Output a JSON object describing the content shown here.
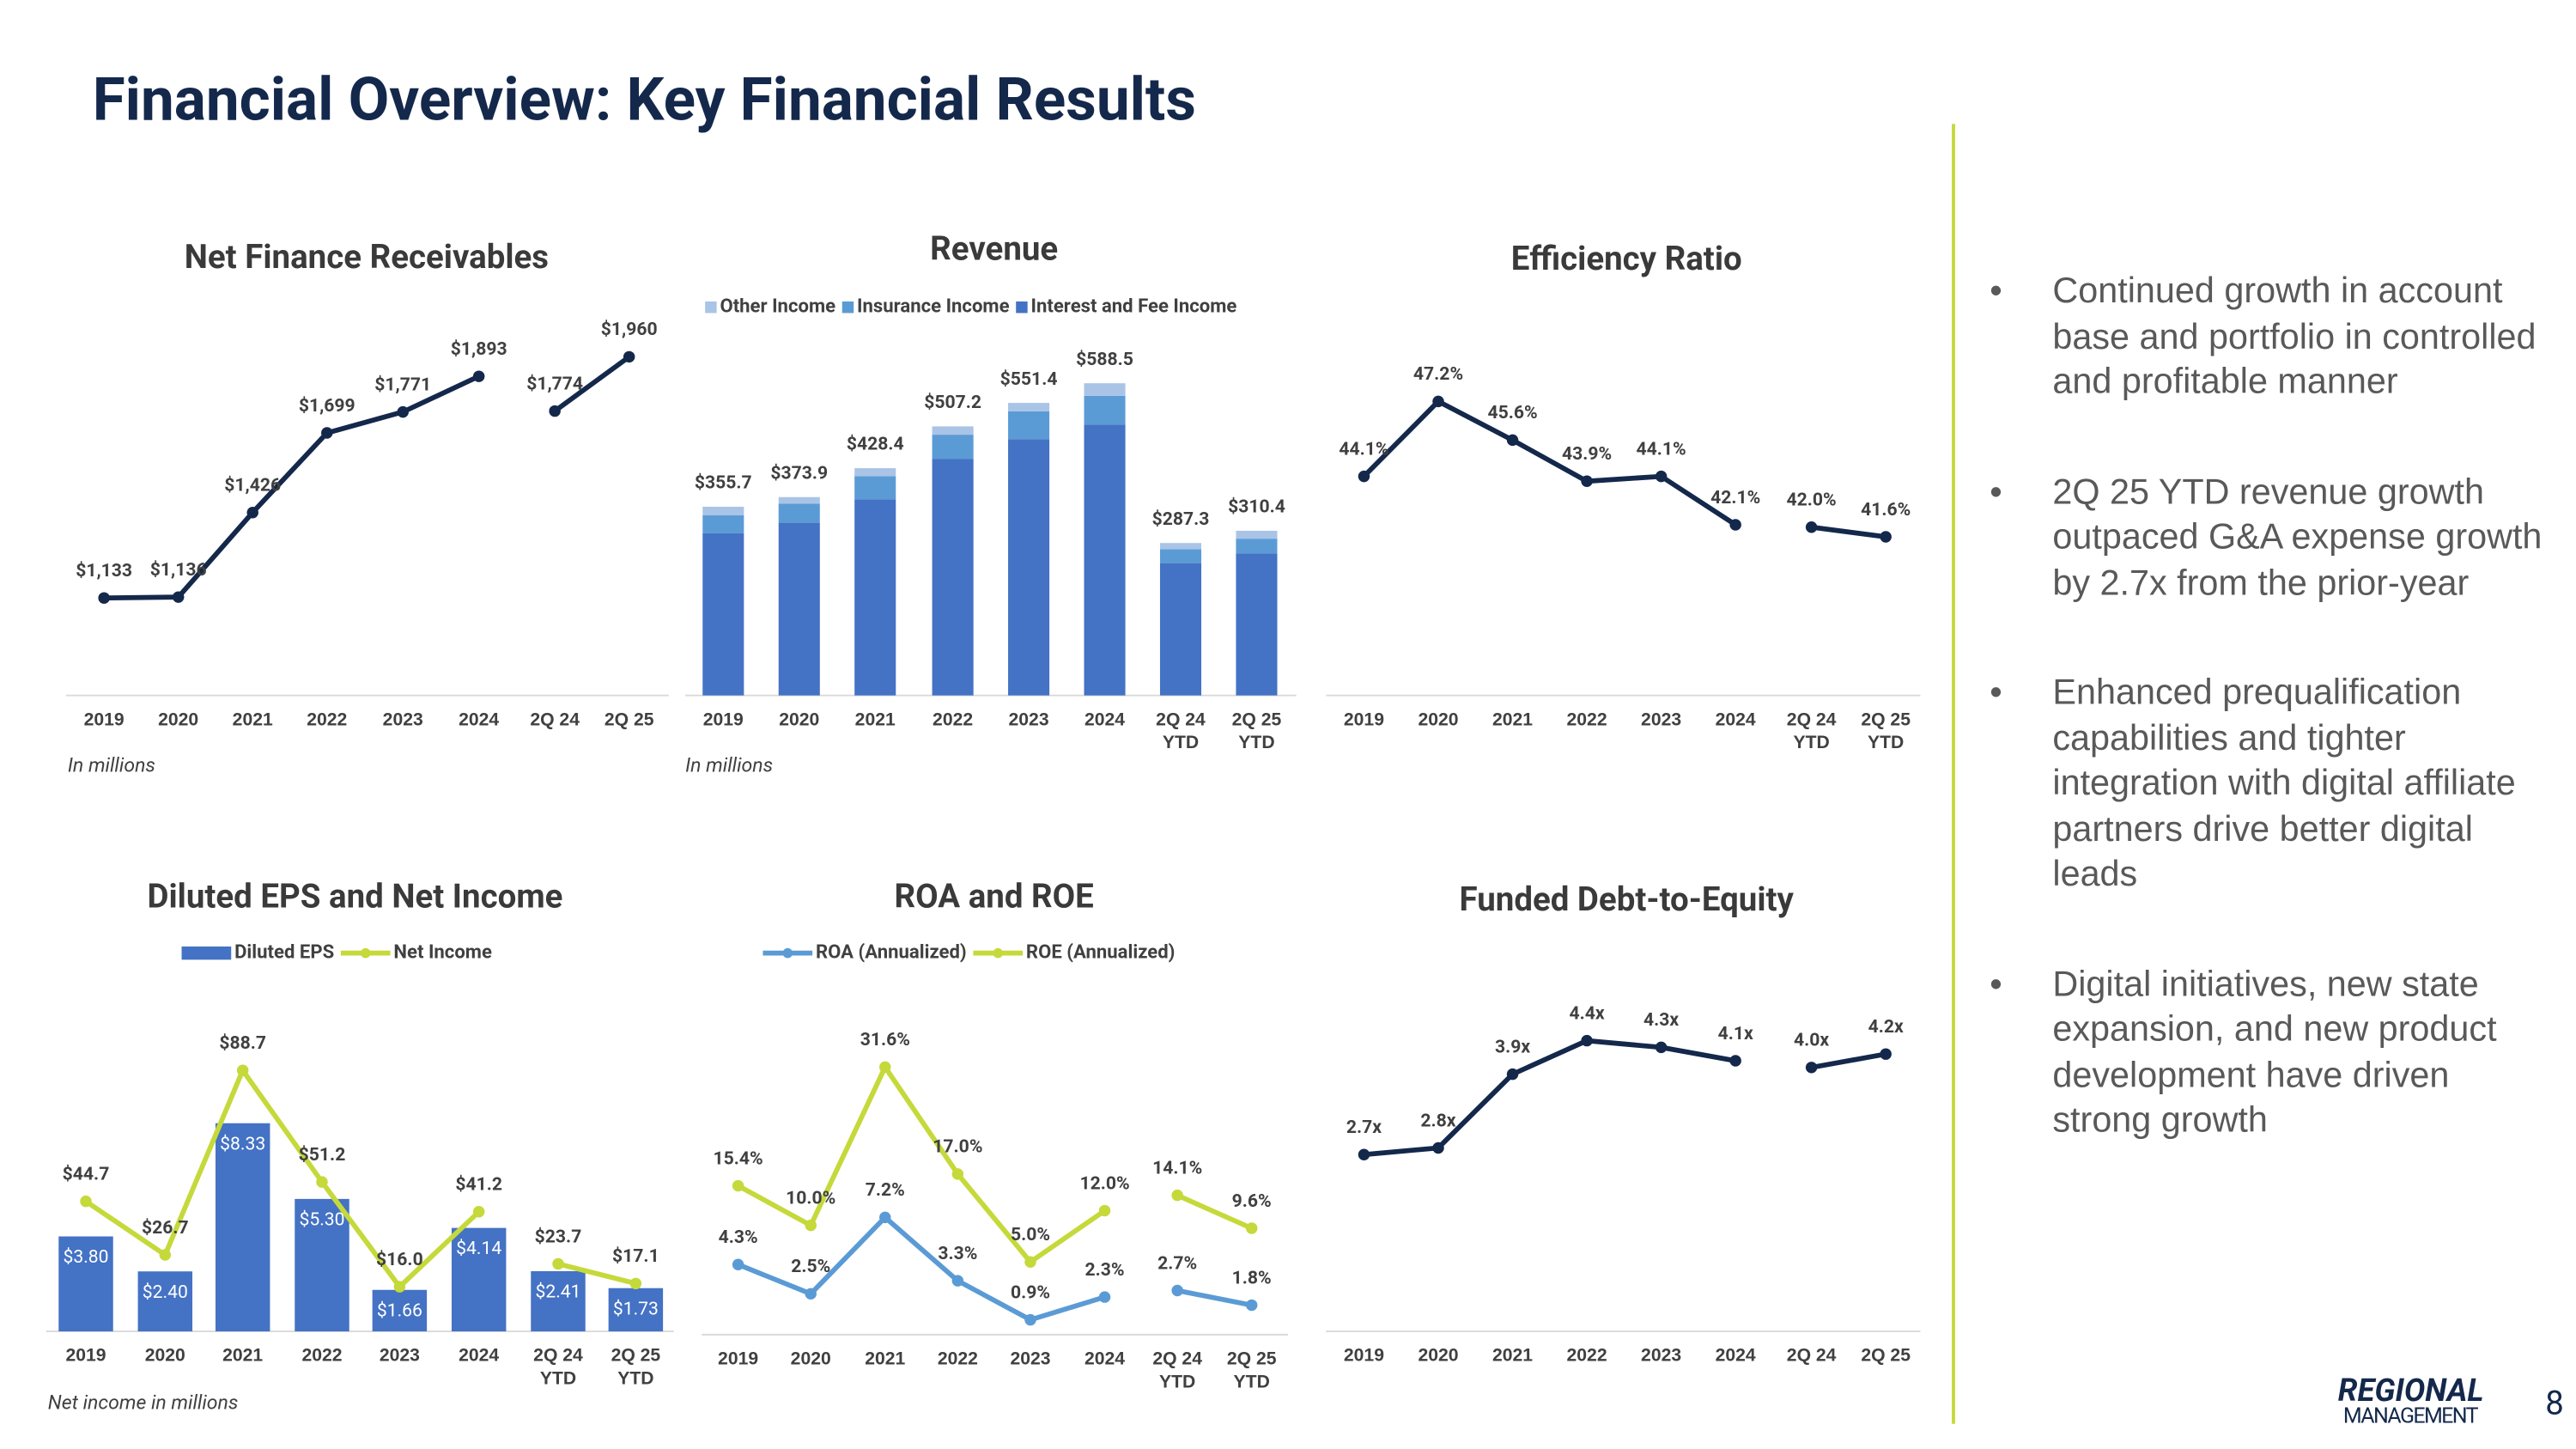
{
  "title": "Financial Overview: Key Financial Results",
  "bullets": [
    "Continued growth in account base and portfolio in controlled and profitable manner",
    "2Q 25 YTD revenue growth outpaced G&A expense growth by 2.7x from the prior-year",
    "Enhanced prequalification capabilities and tighter integration with digital affiliate partners drive better digital leads",
    "Digital initiatives, new state expansion, and new product development have driven strong growth"
  ],
  "logo": [
    "REGIONAL",
    "MANAGEMENT"
  ],
  "page_number": "8",
  "chart_data": [
    {
      "type": "line",
      "title": "Net Finance Receivables",
      "note": "In millions",
      "categories": [
        "2019",
        "2020",
        "2021",
        "2022",
        "2023",
        "2024",
        "2Q 24",
        "2Q 25"
      ],
      "series": [
        {
          "color": "#14284b",
          "values": [
            1133,
            1136,
            1426,
            1699,
            1771,
            1893,
            null,
            null
          ],
          "value_labels": [
            "$1,133",
            "$1,136",
            "$1,426",
            "$1,699",
            "$1,771",
            "$1,893",
            null,
            null
          ]
        },
        {
          "color": "#14284b",
          "values": [
            null,
            null,
            null,
            null,
            null,
            null,
            1774,
            1960
          ],
          "value_labels": [
            null,
            null,
            null,
            null,
            null,
            null,
            "$1,774",
            "$1,960"
          ]
        }
      ]
    },
    {
      "type": "bar",
      "stacked": true,
      "title": "Revenue",
      "note": "In millions",
      "categories": [
        "2019",
        "2020",
        "2021",
        "2022",
        "2023",
        "2024",
        "2Q 24 YTD",
        "2Q 25 YTD"
      ],
      "series": [
        {
          "name": "Interest and Fee Income",
          "color": "#4472c4",
          "values": [
            305.6,
            324.9,
            369.8,
            445.5,
            483.0,
            510.5,
            249.4,
            267.6
          ]
        },
        {
          "name": "Insurance Income",
          "color": "#5b9bd5",
          "values": [
            33.9,
            36.5,
            43.5,
            46.0,
            52.7,
            54.2,
            26.3,
            27.9
          ]
        },
        {
          "name": "Other Income",
          "color": "#a9c4e6",
          "values": [
            16.2,
            12.5,
            15.1,
            15.7,
            15.7,
            23.8,
            11.6,
            14.9
          ]
        }
      ],
      "totals": [
        355.7,
        373.9,
        428.4,
        507.2,
        551.4,
        588.5,
        287.3,
        310.4
      ],
      "total_labels": [
        "$355.7",
        "$373.9",
        "$428.4",
        "$507.2",
        "$551.4",
        "$588.5",
        "$287.3",
        "$310.4"
      ]
    },
    {
      "type": "line",
      "title": "Efficiency Ratio",
      "categories": [
        "2019",
        "2020",
        "2021",
        "2022",
        "2023",
        "2024",
        "2Q 24 YTD",
        "2Q 25 YTD"
      ],
      "series": [
        {
          "color": "#14284b",
          "values": [
            44.1,
            47.2,
            45.6,
            43.9,
            44.1,
            42.1,
            null,
            null
          ],
          "value_labels": [
            "44.1%",
            "47.2%",
            "45.6%",
            "43.9%",
            "44.1%",
            "42.1%",
            null,
            null
          ]
        },
        {
          "color": "#14284b",
          "values": [
            null,
            null,
            null,
            null,
            null,
            null,
            42.0,
            41.6
          ],
          "value_labels": [
            null,
            null,
            null,
            null,
            null,
            null,
            "42.0%",
            "41.6%"
          ]
        }
      ]
    },
    {
      "type": "bar",
      "title": "Diluted EPS and Net Income",
      "note": "Net income in millions",
      "categories": [
        "2019",
        "2020",
        "2021",
        "2022",
        "2023",
        "2024",
        "2Q 24 YTD",
        "2Q 25 YTD"
      ],
      "series": [
        {
          "name": "Diluted EPS",
          "color": "#4472c4",
          "values": [
            3.8,
            2.4,
            8.33,
            5.3,
            1.66,
            4.14,
            2.41,
            1.73
          ],
          "value_labels": [
            "$3.80",
            "$2.40",
            "$8.33",
            "$5.30",
            "$1.66",
            "$4.14",
            "$2.41",
            "$1.73"
          ]
        },
        {
          "name": "Net Income",
          "type": "line",
          "axis": "y2",
          "color": "#c5d93a",
          "values": [
            44.7,
            26.7,
            88.7,
            51.2,
            16.0,
            41.2,
            null,
            null
          ],
          "value_labels": [
            "$44.7",
            "$26.7",
            "$88.7",
            "$51.2",
            "$16.0",
            "$41.2",
            null,
            null
          ]
        },
        {
          "type": "line",
          "axis": "y2",
          "color": "#c5d93a",
          "values": [
            null,
            null,
            null,
            null,
            null,
            null,
            23.7,
            17.1
          ],
          "value_labels": [
            null,
            null,
            null,
            null,
            null,
            null,
            "$23.7",
            "$17.1"
          ]
        }
      ]
    },
    {
      "type": "line",
      "title": "ROA and ROE",
      "categories": [
        "2019",
        "2020",
        "2021",
        "2022",
        "2023",
        "2024",
        "2Q 24 YTD",
        "2Q 25 YTD"
      ],
      "series": [
        {
          "name": "ROA (Annualized)",
          "color": "#5b9bd5",
          "values": [
            4.3,
            2.5,
            7.2,
            3.3,
            0.9,
            2.3,
            null,
            null
          ],
          "value_labels": [
            "4.3%",
            "2.5%",
            "7.2%",
            "3.3%",
            "0.9%",
            "2.3%",
            null,
            null
          ]
        },
        {
          "color": "#5b9bd5",
          "values": [
            null,
            null,
            null,
            null,
            null,
            null,
            2.7,
            1.8
          ],
          "value_labels": [
            null,
            null,
            null,
            null,
            null,
            null,
            "2.7%",
            "1.8%"
          ]
        },
        {
          "name": "ROE (Annualized)",
          "axis": "y2",
          "color": "#c5d93a",
          "values": [
            15.4,
            10.0,
            31.6,
            17.0,
            5.0,
            12.0,
            null,
            null
          ],
          "value_labels": [
            "15.4%",
            "10.0%",
            "31.6%",
            "17.0%",
            "5.0%",
            "12.0%",
            null,
            null
          ]
        },
        {
          "axis": "y2",
          "color": "#c5d93a",
          "values": [
            null,
            null,
            null,
            null,
            null,
            null,
            14.1,
            9.6
          ],
          "value_labels": [
            null,
            null,
            null,
            null,
            null,
            null,
            "14.1%",
            "9.6%"
          ]
        }
      ]
    },
    {
      "type": "line",
      "title": "Funded Debt-to-Equity",
      "categories": [
        "2019",
        "2020",
        "2021",
        "2022",
        "2023",
        "2024",
        "2Q 24",
        "2Q 25"
      ],
      "series": [
        {
          "color": "#14284b",
          "values": [
            2.7,
            2.8,
            3.9,
            4.4,
            4.3,
            4.1,
            null,
            null
          ],
          "value_labels": [
            "2.7x",
            "2.8x",
            "3.9x",
            "4.4x",
            "4.3x",
            "4.1x",
            null,
            null
          ]
        },
        {
          "color": "#14284b",
          "values": [
            null,
            null,
            null,
            null,
            null,
            null,
            4.0,
            4.2
          ],
          "value_labels": [
            null,
            null,
            null,
            null,
            null,
            null,
            "4.0x",
            "4.2x"
          ]
        }
      ]
    }
  ]
}
